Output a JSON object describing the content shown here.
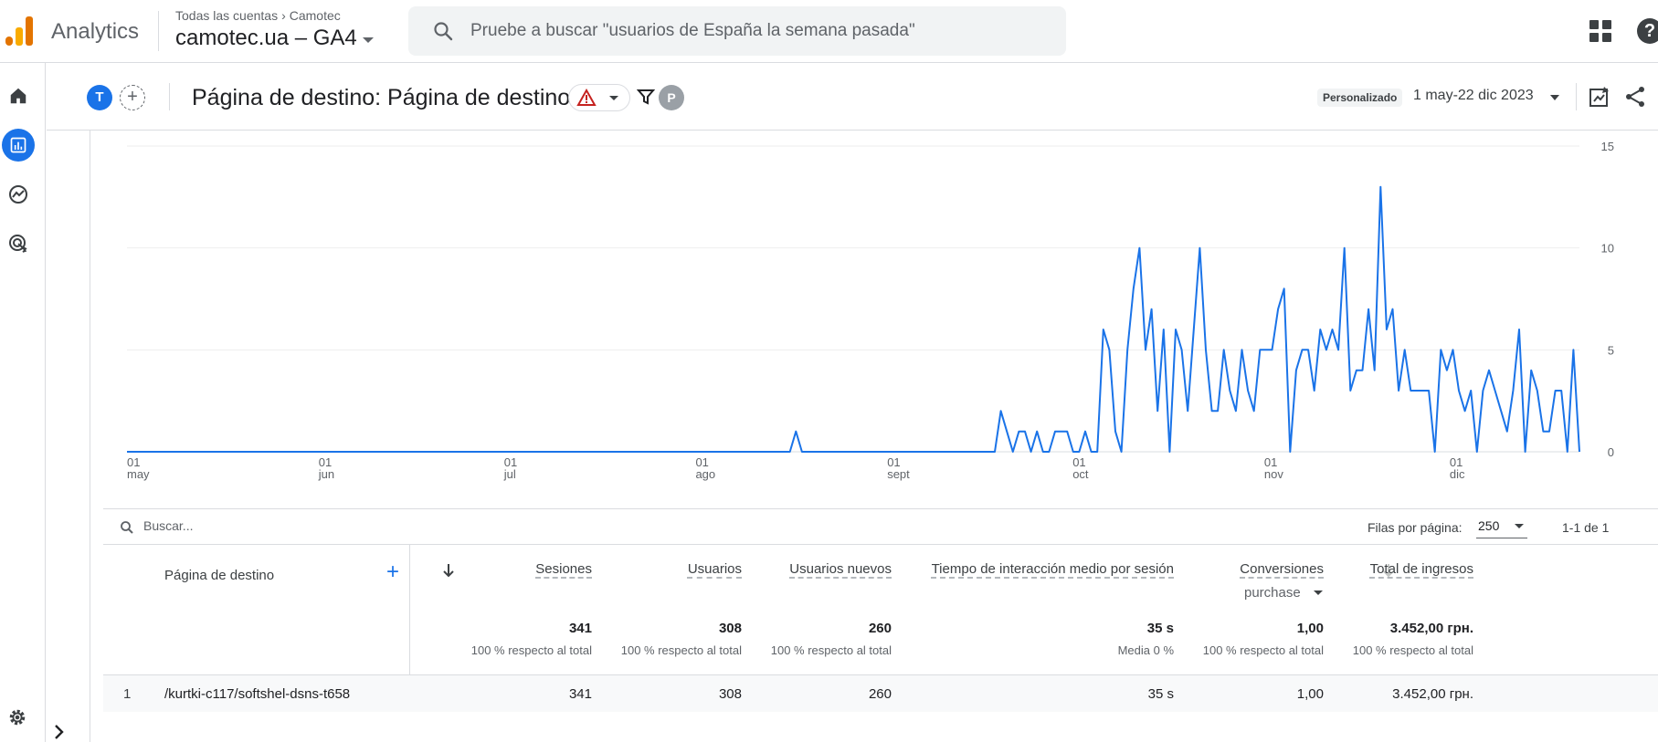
{
  "app": {
    "name": "Analytics",
    "breadcrumb": [
      "Todas las cuentas",
      "Camotec"
    ],
    "property": "camotec.ua – GA4"
  },
  "search": {
    "placeholder": "Pruebe a buscar \"usuarios de España la semana pasada\""
  },
  "header": {
    "compare_avatar": "T",
    "title": "Página de destino: Página de destino",
    "filter_avatar": "P",
    "date_chip": "Personalizado",
    "date_range": "1 may-22 dic 2023"
  },
  "nav": {
    "items": [
      "home-icon",
      "reports-icon",
      "explore-icon",
      "advertising-icon"
    ],
    "active": "reports-icon"
  },
  "colors": {
    "accent": "#1a73e8",
    "warning": "#e37400",
    "line": "#1a73e8"
  },
  "chart_data": {
    "type": "line",
    "x_start": "2023-05-01",
    "x_end": "2023-12-22",
    "x_ticks": [
      {
        "date": "2023-05-01",
        "day": "01",
        "month": "may"
      },
      {
        "date": "2023-06-01",
        "day": "01",
        "month": "jun"
      },
      {
        "date": "2023-07-01",
        "day": "01",
        "month": "jul"
      },
      {
        "date": "2023-08-01",
        "day": "01",
        "month": "ago"
      },
      {
        "date": "2023-09-01",
        "day": "01",
        "month": "sept"
      },
      {
        "date": "2023-10-01",
        "day": "01",
        "month": "oct"
      },
      {
        "date": "2023-11-01",
        "day": "01",
        "month": "nov"
      },
      {
        "date": "2023-12-01",
        "day": "01",
        "month": "dic"
      }
    ],
    "y_ticks": [
      0,
      5,
      10,
      15
    ],
    "ylim": [
      0,
      15
    ],
    "y_axis_side": "right",
    "grid": true,
    "series": [
      {
        "values": [
          0,
          0,
          0,
          0,
          0,
          0,
          0,
          0,
          0,
          0,
          0,
          0,
          0,
          0,
          0,
          0,
          0,
          0,
          0,
          0,
          0,
          0,
          0,
          0,
          0,
          0,
          0,
          0,
          0,
          0,
          0,
          0,
          0,
          0,
          0,
          0,
          0,
          0,
          0,
          0,
          0,
          0,
          0,
          0,
          0,
          0,
          0,
          0,
          0,
          0,
          0,
          0,
          0,
          0,
          0,
          0,
          0,
          0,
          0,
          0,
          0,
          0,
          0,
          0,
          0,
          0,
          0,
          0,
          0,
          0,
          0,
          0,
          0,
          0,
          0,
          0,
          0,
          0,
          0,
          0,
          0,
          0,
          0,
          0,
          0,
          0,
          0,
          0,
          0,
          0,
          0,
          0,
          0,
          0,
          0,
          0,
          0,
          0,
          0,
          0,
          0,
          0,
          0,
          0,
          0,
          0,
          0,
          0,
          0,
          0,
          0,
          1,
          0,
          0,
          0,
          0,
          0,
          0,
          0,
          0,
          0,
          0,
          0,
          0,
          0,
          0,
          0,
          0,
          0,
          0,
          0,
          0,
          0,
          0,
          0,
          0,
          0,
          0,
          0,
          0,
          0,
          0,
          0,
          0,
          0,
          2,
          1,
          0,
          1,
          1,
          0,
          1,
          0,
          0,
          1,
          1,
          1,
          0,
          0,
          1,
          0,
          0,
          6,
          5,
          1,
          0,
          5,
          8,
          10,
          5,
          7,
          2,
          6,
          0,
          6,
          5,
          2,
          6,
          10,
          5,
          2,
          2,
          5,
          3,
          2,
          5,
          3,
          2,
          5,
          5,
          5,
          7,
          8,
          0,
          4,
          5,
          5,
          3,
          6,
          5,
          6,
          5,
          10,
          3,
          4,
          4,
          7,
          4,
          13,
          6,
          7,
          3,
          5,
          3,
          3,
          3,
          3,
          0,
          5,
          4,
          5,
          3,
          2,
          3,
          0,
          3,
          4,
          3,
          2,
          1,
          3,
          6,
          0,
          4,
          3,
          1,
          1,
          3,
          3,
          0,
          5,
          0
        ]
      }
    ]
  },
  "table": {
    "search_placeholder": "Buscar...",
    "rows_per_page_label": "Filas por página:",
    "rows_per_page": "250",
    "page_info": "1-1 de 1",
    "dimension_header": "Página de destino",
    "columns": [
      {
        "label": "Sesiones",
        "total": "341",
        "sub": "100 % respecto al total",
        "sorted": true
      },
      {
        "label": "Usuarios",
        "total": "308",
        "sub": "100 % respecto al total"
      },
      {
        "label": "Usuarios nuevos",
        "total": "260",
        "sub": "100 % respecto al total"
      },
      {
        "label": "Tiempo de interacción medio por sesión",
        "total": "35 s",
        "sub": "Media 0 %"
      },
      {
        "label": "Conversiones",
        "total": "1,00",
        "sub": "100 % respecto al total",
        "selector": "purchase"
      },
      {
        "label": "Total de ingresos",
        "total": "3.452,00 грн.",
        "sub": "100 % respecto al total"
      }
    ],
    "rows": [
      {
        "num": "1",
        "dim": "/kurtki-c117/softshel-dsns-t658",
        "values": [
          "341",
          "308",
          "260",
          "35 s",
          "1,00",
          "3.452,00 грн."
        ]
      }
    ]
  }
}
